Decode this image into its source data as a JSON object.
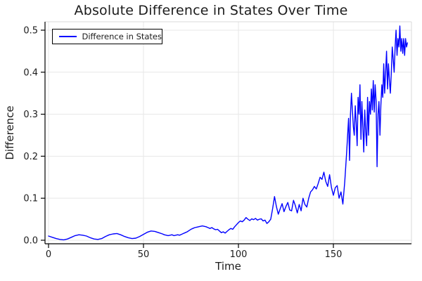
{
  "chart_data": {
    "type": "line",
    "title": "Absolute Difference in States Over Time",
    "xlabel": "Time",
    "ylabel": "Difference",
    "grid": true,
    "legend_position": "top-left",
    "x_ticks": [
      0,
      50,
      100,
      150
    ],
    "y_ticks": [
      "0.0",
      "0.1",
      "0.2",
      "0.3",
      "0.4",
      "0.5"
    ],
    "xlim": [
      -1.85,
      191.1
    ],
    "ylim": [
      -0.0084,
      0.52
    ],
    "colors": {
      "line": "#0000ff",
      "grid": "#e7e7e7",
      "frame": "#d9d9d9",
      "spine": "#000000",
      "text": "#1c1c1c"
    },
    "series": [
      {
        "name": "Difference in States",
        "color": "#0000ff",
        "points": [
          [
            0,
            0.01
          ],
          [
            2,
            0.007
          ],
          [
            4,
            0.004
          ],
          [
            6,
            0.002
          ],
          [
            8,
            0.001
          ],
          [
            10,
            0.003
          ],
          [
            12,
            0.007
          ],
          [
            14,
            0.011
          ],
          [
            16,
            0.013
          ],
          [
            18,
            0.012
          ],
          [
            20,
            0.01
          ],
          [
            22,
            0.006
          ],
          [
            24,
            0.003
          ],
          [
            26,
            0.002
          ],
          [
            28,
            0.004
          ],
          [
            30,
            0.009
          ],
          [
            32,
            0.013
          ],
          [
            34,
            0.015
          ],
          [
            36,
            0.016
          ],
          [
            38,
            0.013
          ],
          [
            40,
            0.009
          ],
          [
            42,
            0.006
          ],
          [
            44,
            0.004
          ],
          [
            46,
            0.005
          ],
          [
            48,
            0.009
          ],
          [
            50,
            0.014
          ],
          [
            52,
            0.019
          ],
          [
            54,
            0.022
          ],
          [
            56,
            0.021
          ],
          [
            58,
            0.018
          ],
          [
            60,
            0.015
          ],
          [
            61,
            0.013
          ],
          [
            62,
            0.012
          ],
          [
            63,
            0.011
          ],
          [
            64,
            0.012
          ],
          [
            65,
            0.013
          ],
          [
            66,
            0.011
          ],
          [
            67,
            0.012
          ],
          [
            68,
            0.013
          ],
          [
            69,
            0.012
          ],
          [
            70,
            0.014
          ],
          [
            71,
            0.016
          ],
          [
            72,
            0.018
          ],
          [
            73,
            0.02
          ],
          [
            74,
            0.023
          ],
          [
            75,
            0.026
          ],
          [
            76,
            0.028
          ],
          [
            77,
            0.03
          ],
          [
            78,
            0.031
          ],
          [
            79,
            0.032
          ],
          [
            80,
            0.033
          ],
          [
            81,
            0.034
          ],
          [
            82,
            0.033
          ],
          [
            83,
            0.032
          ],
          [
            84,
            0.03
          ],
          [
            85,
            0.028
          ],
          [
            86,
            0.03
          ],
          [
            87,
            0.027
          ],
          [
            88,
            0.025
          ],
          [
            89,
            0.026
          ],
          [
            90,
            0.022
          ],
          [
            91,
            0.018
          ],
          [
            92,
            0.02
          ],
          [
            93,
            0.017
          ],
          [
            94,
            0.021
          ],
          [
            95,
            0.025
          ],
          [
            96,
            0.028
          ],
          [
            97,
            0.026
          ],
          [
            98,
            0.032
          ],
          [
            99,
            0.037
          ],
          [
            100,
            0.042
          ],
          [
            101,
            0.046
          ],
          [
            102,
            0.044
          ],
          [
            103,
            0.048
          ],
          [
            104,
            0.054
          ],
          [
            105,
            0.05
          ],
          [
            106,
            0.047
          ],
          [
            107,
            0.051
          ],
          [
            108,
            0.049
          ],
          [
            109,
            0.052
          ],
          [
            110,
            0.048
          ],
          [
            111,
            0.05
          ],
          [
            112,
            0.051
          ],
          [
            113,
            0.046
          ],
          [
            114,
            0.048
          ],
          [
            115,
            0.04
          ],
          [
            116,
            0.044
          ],
          [
            117,
            0.05
          ],
          [
            118,
            0.075
          ],
          [
            119,
            0.104
          ],
          [
            120,
            0.08
          ],
          [
            121,
            0.062
          ],
          [
            122,
            0.075
          ],
          [
            123,
            0.087
          ],
          [
            124,
            0.068
          ],
          [
            125,
            0.08
          ],
          [
            126,
            0.09
          ],
          [
            127,
            0.072
          ],
          [
            128,
            0.07
          ],
          [
            129,
            0.095
          ],
          [
            130,
            0.082
          ],
          [
            131,
            0.065
          ],
          [
            132,
            0.085
          ],
          [
            133,
            0.07
          ],
          [
            134,
            0.1
          ],
          [
            135,
            0.085
          ],
          [
            136,
            0.079
          ],
          [
            137,
            0.1
          ],
          [
            138,
            0.115
          ],
          [
            139,
            0.12
          ],
          [
            140,
            0.128
          ],
          [
            141,
            0.122
          ],
          [
            142,
            0.135
          ],
          [
            143,
            0.15
          ],
          [
            144,
            0.145
          ],
          [
            145,
            0.162
          ],
          [
            146,
            0.14
          ],
          [
            147,
            0.128
          ],
          [
            148,
            0.156
          ],
          [
            149,
            0.125
          ],
          [
            150,
            0.107
          ],
          [
            151,
            0.125
          ],
          [
            152,
            0.13
          ],
          [
            153,
            0.1
          ],
          [
            154,
            0.115
          ],
          [
            155,
            0.086
          ],
          [
            156,
            0.14
          ],
          [
            157,
            0.21
          ],
          [
            158,
            0.29
          ],
          [
            158.5,
            0.19
          ],
          [
            159,
            0.3
          ],
          [
            159.5,
            0.35
          ],
          [
            160,
            0.31
          ],
          [
            160.5,
            0.27
          ],
          [
            161,
            0.25
          ],
          [
            161.5,
            0.32
          ],
          [
            162,
            0.28
          ],
          [
            162.5,
            0.225
          ],
          [
            163,
            0.34
          ],
          [
            163.5,
            0.3
          ],
          [
            164,
            0.37
          ],
          [
            164.5,
            0.24
          ],
          [
            165,
            0.33
          ],
          [
            165.5,
            0.27
          ],
          [
            166,
            0.21
          ],
          [
            166.5,
            0.31
          ],
          [
            167,
            0.26
          ],
          [
            167.5,
            0.225
          ],
          [
            168,
            0.34
          ],
          [
            168.5,
            0.25
          ],
          [
            169,
            0.33
          ],
          [
            169.5,
            0.3
          ],
          [
            170,
            0.36
          ],
          [
            170.5,
            0.31
          ],
          [
            171,
            0.38
          ],
          [
            171.5,
            0.305
          ],
          [
            172,
            0.37
          ],
          [
            172.5,
            0.33
          ],
          [
            173,
            0.175
          ],
          [
            173.5,
            0.3
          ],
          [
            174,
            0.33
          ],
          [
            174.5,
            0.25
          ],
          [
            175,
            0.32
          ],
          [
            175.5,
            0.37
          ],
          [
            176,
            0.34
          ],
          [
            176.5,
            0.42
          ],
          [
            177,
            0.35
          ],
          [
            177.5,
            0.4
          ],
          [
            178,
            0.45
          ],
          [
            178.5,
            0.36
          ],
          [
            179,
            0.42
          ],
          [
            179.5,
            0.38
          ],
          [
            180,
            0.35
          ],
          [
            180.5,
            0.4
          ],
          [
            181,
            0.46
          ],
          [
            181.5,
            0.43
          ],
          [
            182,
            0.4
          ],
          [
            182.5,
            0.46
          ],
          [
            183,
            0.5
          ],
          [
            183.5,
            0.44
          ],
          [
            184,
            0.48
          ],
          [
            184.5,
            0.46
          ],
          [
            185,
            0.51
          ],
          [
            185.5,
            0.45
          ],
          [
            186,
            0.48
          ],
          [
            186.5,
            0.445
          ],
          [
            187,
            0.48
          ],
          [
            187.5,
            0.44
          ],
          [
            188,
            0.48
          ],
          [
            188.5,
            0.46
          ],
          [
            189,
            0.47
          ]
        ]
      }
    ]
  }
}
